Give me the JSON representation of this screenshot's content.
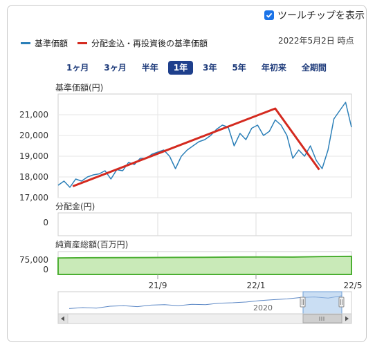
{
  "tooltip": {
    "label": "ツールチップを表示",
    "checked": true
  },
  "legend": [
    {
      "name": "基準価額",
      "color": "#2b7fb8"
    },
    {
      "name": "分配金込・再投資後の基準価額",
      "color": "#d42a1f"
    }
  ],
  "as_of": "2022年5月2日 時点",
  "ranges": [
    "1ヶ月",
    "3ヶ月",
    "半年",
    "1年",
    "3年",
    "5年",
    "年初来",
    "全期間"
  ],
  "active_range": "1年",
  "chart_data": [
    {
      "type": "line",
      "ylabel": "基準価額(円)",
      "yticks": [
        "21,000",
        "20,000",
        "19,000",
        "18,000",
        "17,000"
      ],
      "ylim": [
        17000,
        22000
      ],
      "series": [
        {
          "color": "#2b7fb8",
          "x": [
            0,
            2,
            4,
            6,
            8,
            10,
            12,
            14,
            16,
            18,
            20,
            22,
            24,
            26,
            28,
            30,
            32,
            34,
            36,
            38,
            40,
            42,
            44,
            46,
            48,
            50,
            52,
            54,
            56,
            58,
            60,
            62,
            64,
            66,
            68,
            70,
            72,
            74,
            76,
            78,
            80,
            82,
            84,
            86,
            88,
            90,
            92,
            94,
            96,
            98,
            100
          ],
          "values": [
            17600,
            17800,
            17500,
            17900,
            17800,
            18000,
            18100,
            18150,
            18300,
            17900,
            18350,
            18300,
            18700,
            18600,
            18900,
            18900,
            19100,
            19200,
            19300,
            19000,
            18400,
            19000,
            19300,
            19500,
            19700,
            19800,
            20000,
            20300,
            20500,
            20400,
            19500,
            20100,
            19800,
            20350,
            20500,
            20000,
            20200,
            20750,
            20500,
            20000,
            18900,
            19300,
            19000,
            19500,
            18800,
            18400,
            19300,
            20800,
            21200,
            21600,
            20400
          ]
        },
        {
          "color": "#d42a1f",
          "x": [
            5,
            74,
            89
          ],
          "values": [
            17550,
            21300,
            18350
          ]
        }
      ]
    },
    {
      "type": "bar",
      "ylabel": "分配金(円)",
      "yticks": [
        "0"
      ],
      "values": []
    },
    {
      "type": "area",
      "ylabel": "純資産総額(百万円)",
      "yticks": [
        "75,000",
        "0"
      ],
      "xticks": [
        "21/9",
        "22/1",
        "22/5"
      ],
      "color": "#4caf32",
      "x": [
        0,
        10,
        20,
        30,
        40,
        50,
        60,
        70,
        80,
        90,
        100
      ],
      "values": [
        72000,
        73000,
        73500,
        74000,
        74500,
        75000,
        76000,
        76500,
        76000,
        78500,
        79000
      ]
    },
    {
      "type": "line",
      "role": "navigator",
      "xticks": [
        "2020"
      ],
      "color": "#5b87c5",
      "x": [
        0,
        5,
        10,
        15,
        20,
        25,
        30,
        35,
        40,
        45,
        50,
        55,
        60,
        65,
        70,
        75,
        80,
        85,
        90,
        95,
        100
      ],
      "values": [
        15000,
        15500,
        15200,
        16200,
        16500,
        16000,
        16800,
        17000,
        16500,
        17200,
        17000,
        17800,
        18000,
        18400,
        19100,
        19600,
        20000,
        20700,
        21000,
        20400,
        21600
      ]
    }
  ]
}
